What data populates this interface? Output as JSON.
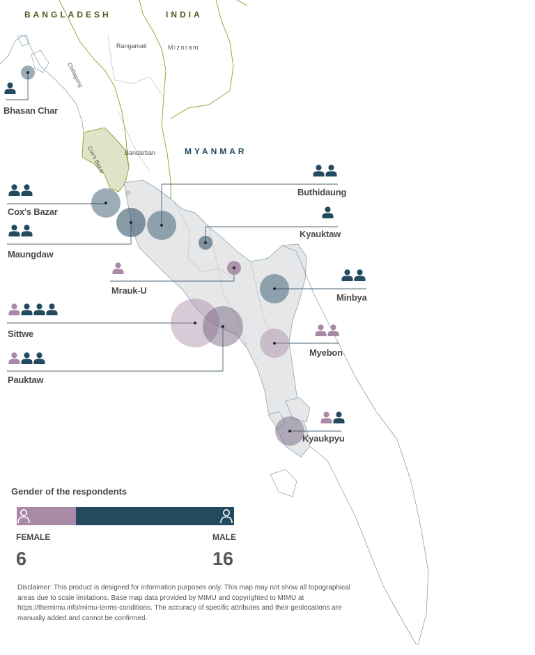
{
  "colors": {
    "female": "#a98aa6",
    "male": "#244a5f",
    "land": "#e6e7e9",
    "border": "#9aa53a",
    "coast": "#8aa0ad",
    "cox_area": "#dfe4c9"
  },
  "countries": [
    {
      "name": "BANGLADESH",
      "color": "#4f5a1e"
    },
    {
      "name": "INDIA",
      "color": "#4f5a1e"
    },
    {
      "name": "MYANMAR",
      "color": "#244a5f"
    }
  ],
  "regions": [
    "Rangamati",
    "Mizoram",
    "Chittagong",
    "Bandarban",
    "Cox's Bazar",
    "R"
  ],
  "sites": [
    {
      "name": "Bhasan Char",
      "female": 0,
      "male": 1
    },
    {
      "name": "Cox's Bazar",
      "female": 0,
      "male": 2
    },
    {
      "name": "Maungdaw",
      "female": 0,
      "male": 2
    },
    {
      "name": "Buthidaung",
      "female": 0,
      "male": 2
    },
    {
      "name": "Kyauktaw",
      "female": 0,
      "male": 1
    },
    {
      "name": "Mrauk-U",
      "female": 1,
      "male": 0
    },
    {
      "name": "Minbya",
      "female": 0,
      "male": 2
    },
    {
      "name": "Sittwe",
      "female": 1,
      "male": 3
    },
    {
      "name": "Myebon",
      "female": 2,
      "male": 0
    },
    {
      "name": "Pauktaw",
      "female": 1,
      "male": 2
    },
    {
      "name": "Kyaukpyu",
      "female": 1,
      "male": 1
    }
  ],
  "legend": {
    "title": "Gender of the respondents",
    "female_label": "FEMALE",
    "male_label": "MALE",
    "female_count": "6",
    "male_count": "16"
  },
  "disclaimer": "Disclaimer: This product is designed for information purposes only. This map may not show all topographical areas due to scale limitations. Base map data provided by MIMU and copyrighted to MIMU at https://themimu.info/mimu-terms-conditions. The accuracy of specific attributes and their geolocations are manually added and cannot be confirmed."
}
